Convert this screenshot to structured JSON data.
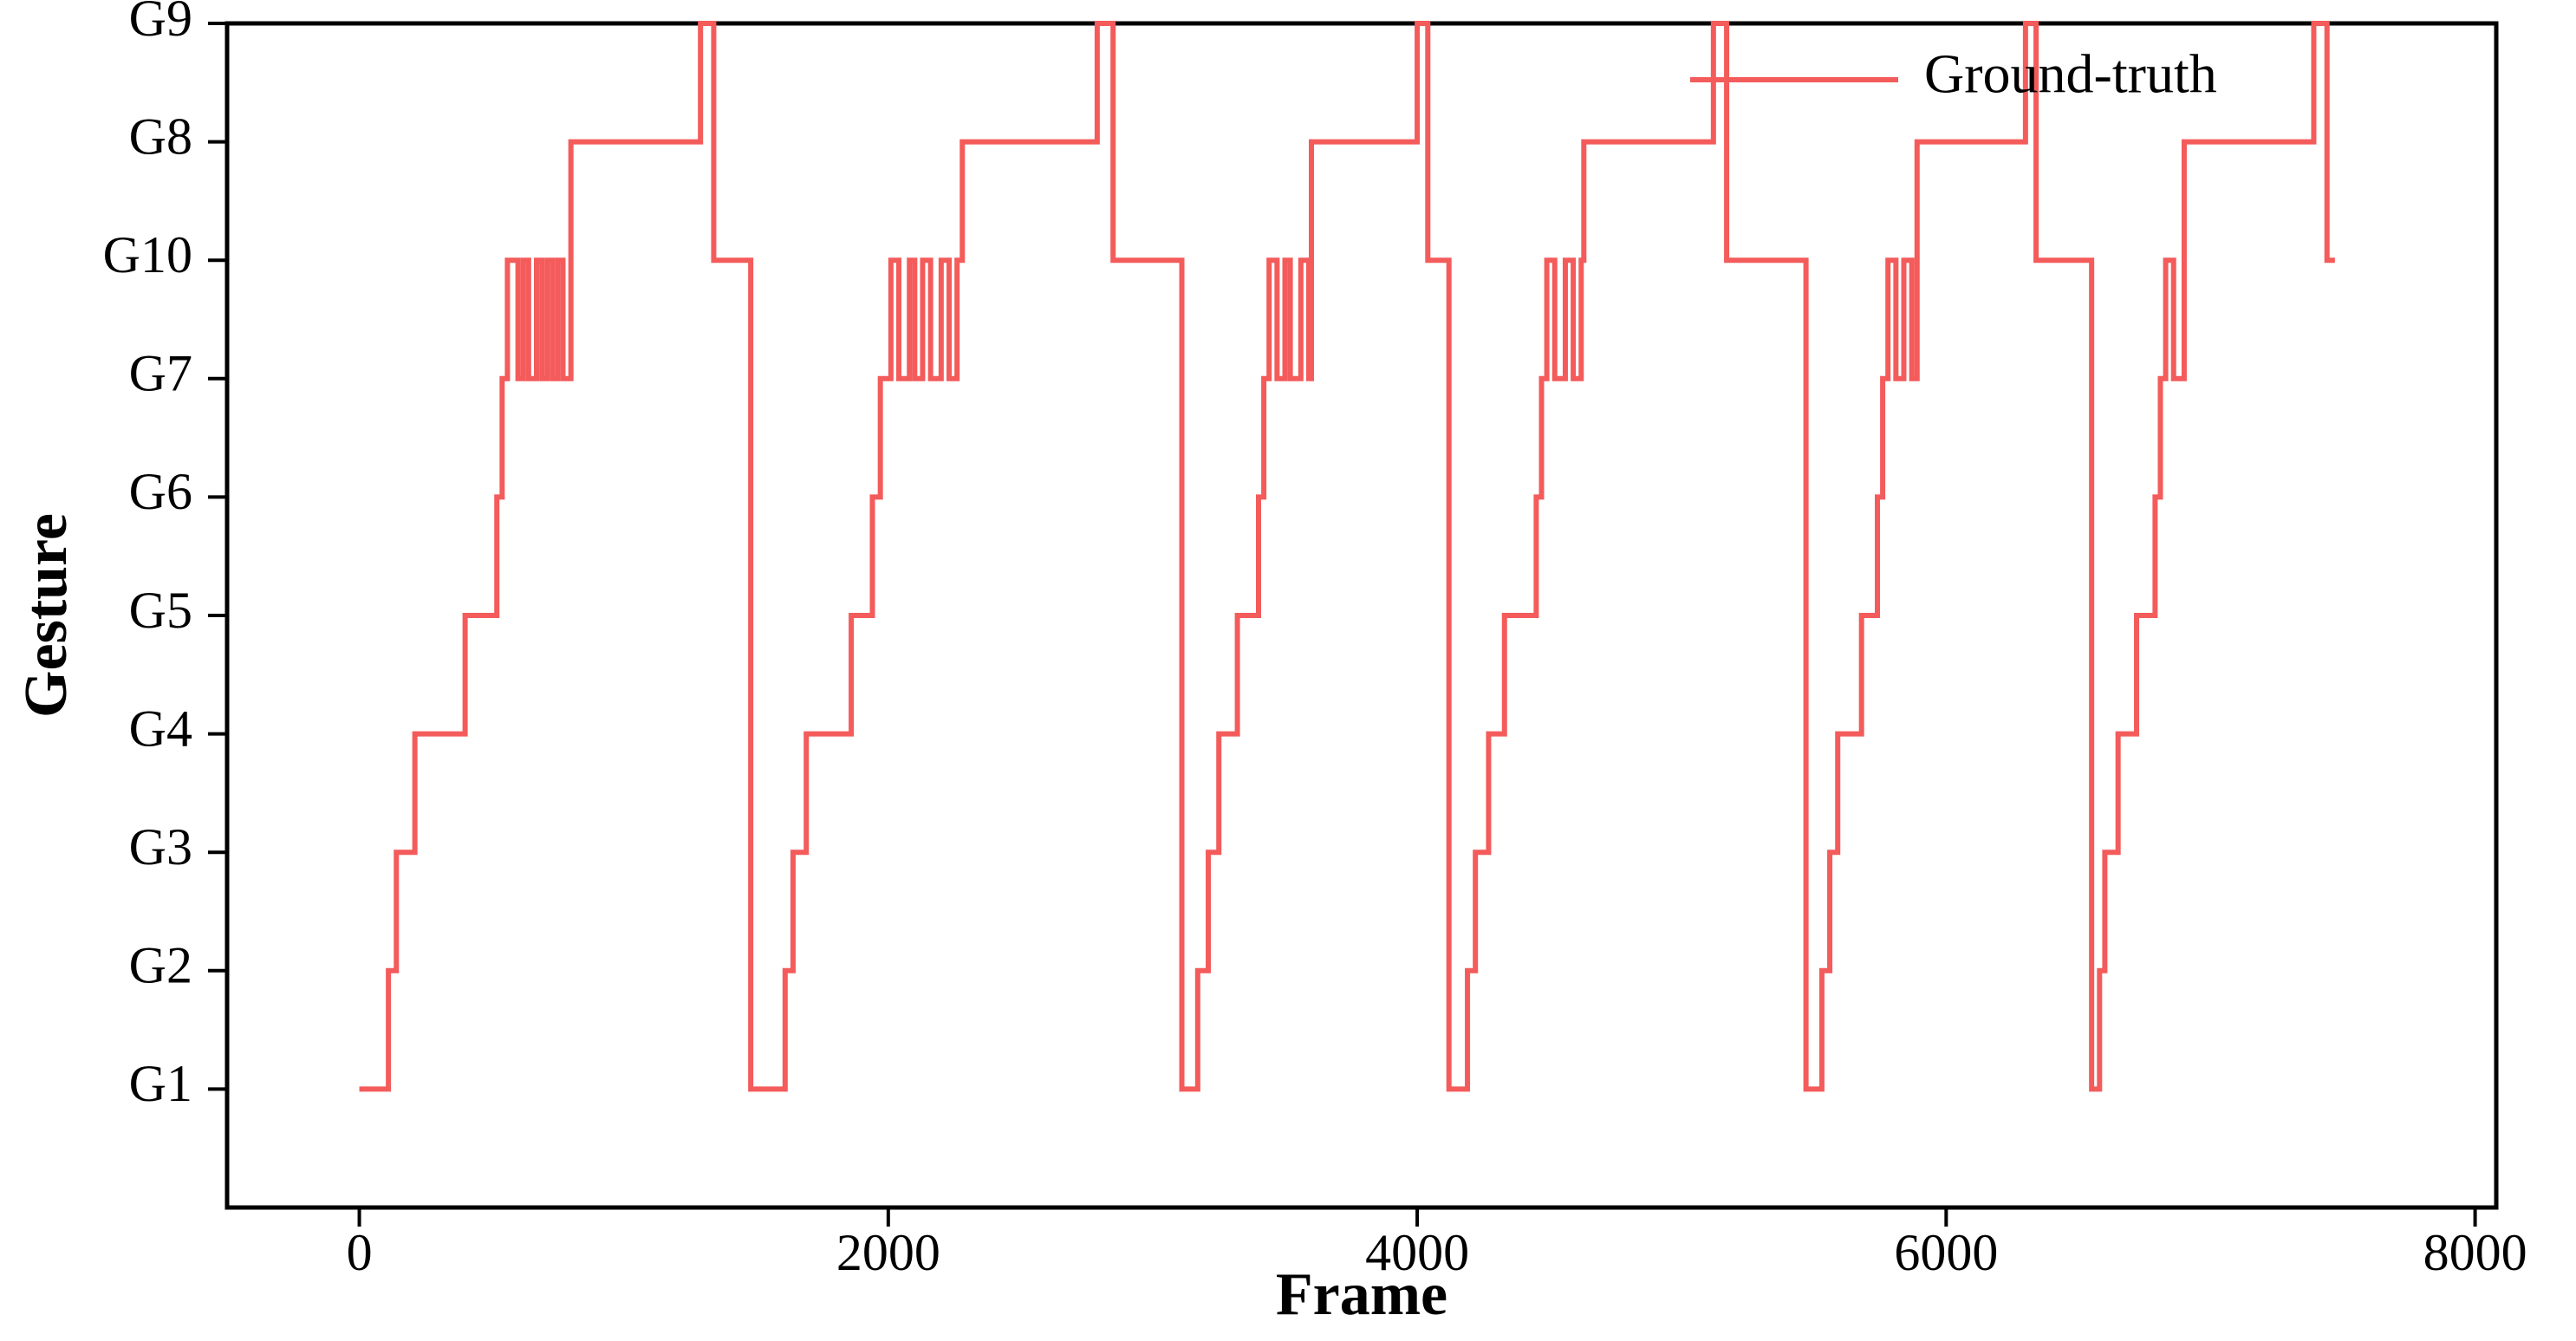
{
  "chart_data": {
    "type": "line",
    "step": "post",
    "x_label": "Frame",
    "y_label": "Gesture",
    "xlim": [
      -500,
      8080
    ],
    "ylim": [
      0,
      10
    ],
    "xticks": [
      0,
      2000,
      4000,
      6000,
      8000
    ],
    "yticks": [
      {
        "value": 1,
        "label": "G1"
      },
      {
        "value": 2,
        "label": "G2"
      },
      {
        "value": 3,
        "label": "G3"
      },
      {
        "value": 4,
        "label": "G4"
      },
      {
        "value": 5,
        "label": "G5"
      },
      {
        "value": 6,
        "label": "G6"
      },
      {
        "value": 7,
        "label": "G7"
      },
      {
        "value": 8,
        "label": "G10"
      },
      {
        "value": 9,
        "label": "G8"
      },
      {
        "value": 10,
        "label": "G9"
      }
    ],
    "legend_position": "upper right",
    "series": [
      {
        "name": "Ground-truth",
        "color": "#f45b5b",
        "x": [
          0,
          110,
          140,
          210,
          400,
          520,
          540,
          560,
          600,
          620,
          640,
          670,
          690,
          710,
          730,
          750,
          770,
          800,
          1290,
          1340,
          1480,
          1610,
          1640,
          1690,
          1860,
          1940,
          1970,
          2010,
          2040,
          2080,
          2100,
          2130,
          2160,
          2200,
          2230,
          2260,
          2280,
          2790,
          2850,
          3110,
          3170,
          3210,
          3250,
          3320,
          3400,
          3420,
          3440,
          3470,
          3500,
          3520,
          3560,
          3590,
          3600,
          4000,
          4040,
          4120,
          4190,
          4220,
          4270,
          4330,
          4450,
          4470,
          4490,
          4520,
          4560,
          4590,
          4620,
          4630,
          5120,
          5170,
          5470,
          5530,
          5560,
          5590,
          5680,
          5740,
          5760,
          5780,
          5810,
          5840,
          5870,
          5890,
          6300,
          6340,
          6550,
          6580,
          6600,
          6650,
          6720,
          6790,
          6810,
          6830,
          6860,
          6900,
          7390,
          7440,
          7470
        ],
        "values": [
          1,
          2,
          3,
          4,
          5,
          6,
          7,
          8,
          7,
          8,
          7,
          8,
          7,
          8,
          7,
          8,
          7,
          9,
          10,
          8,
          1,
          2,
          3,
          4,
          5,
          6,
          7,
          8,
          7,
          8,
          7,
          8,
          7,
          8,
          7,
          8,
          9,
          10,
          8,
          1,
          2,
          3,
          4,
          5,
          6,
          7,
          8,
          7,
          8,
          7,
          8,
          7,
          9,
          10,
          8,
          1,
          2,
          3,
          4,
          5,
          6,
          7,
          8,
          7,
          8,
          7,
          8,
          9,
          10,
          8,
          1,
          2,
          3,
          4,
          5,
          6,
          7,
          8,
          7,
          8,
          7,
          9,
          10,
          8,
          1,
          2,
          3,
          4,
          5,
          6,
          7,
          8,
          7,
          9,
          10,
          8,
          8
        ]
      }
    ]
  }
}
